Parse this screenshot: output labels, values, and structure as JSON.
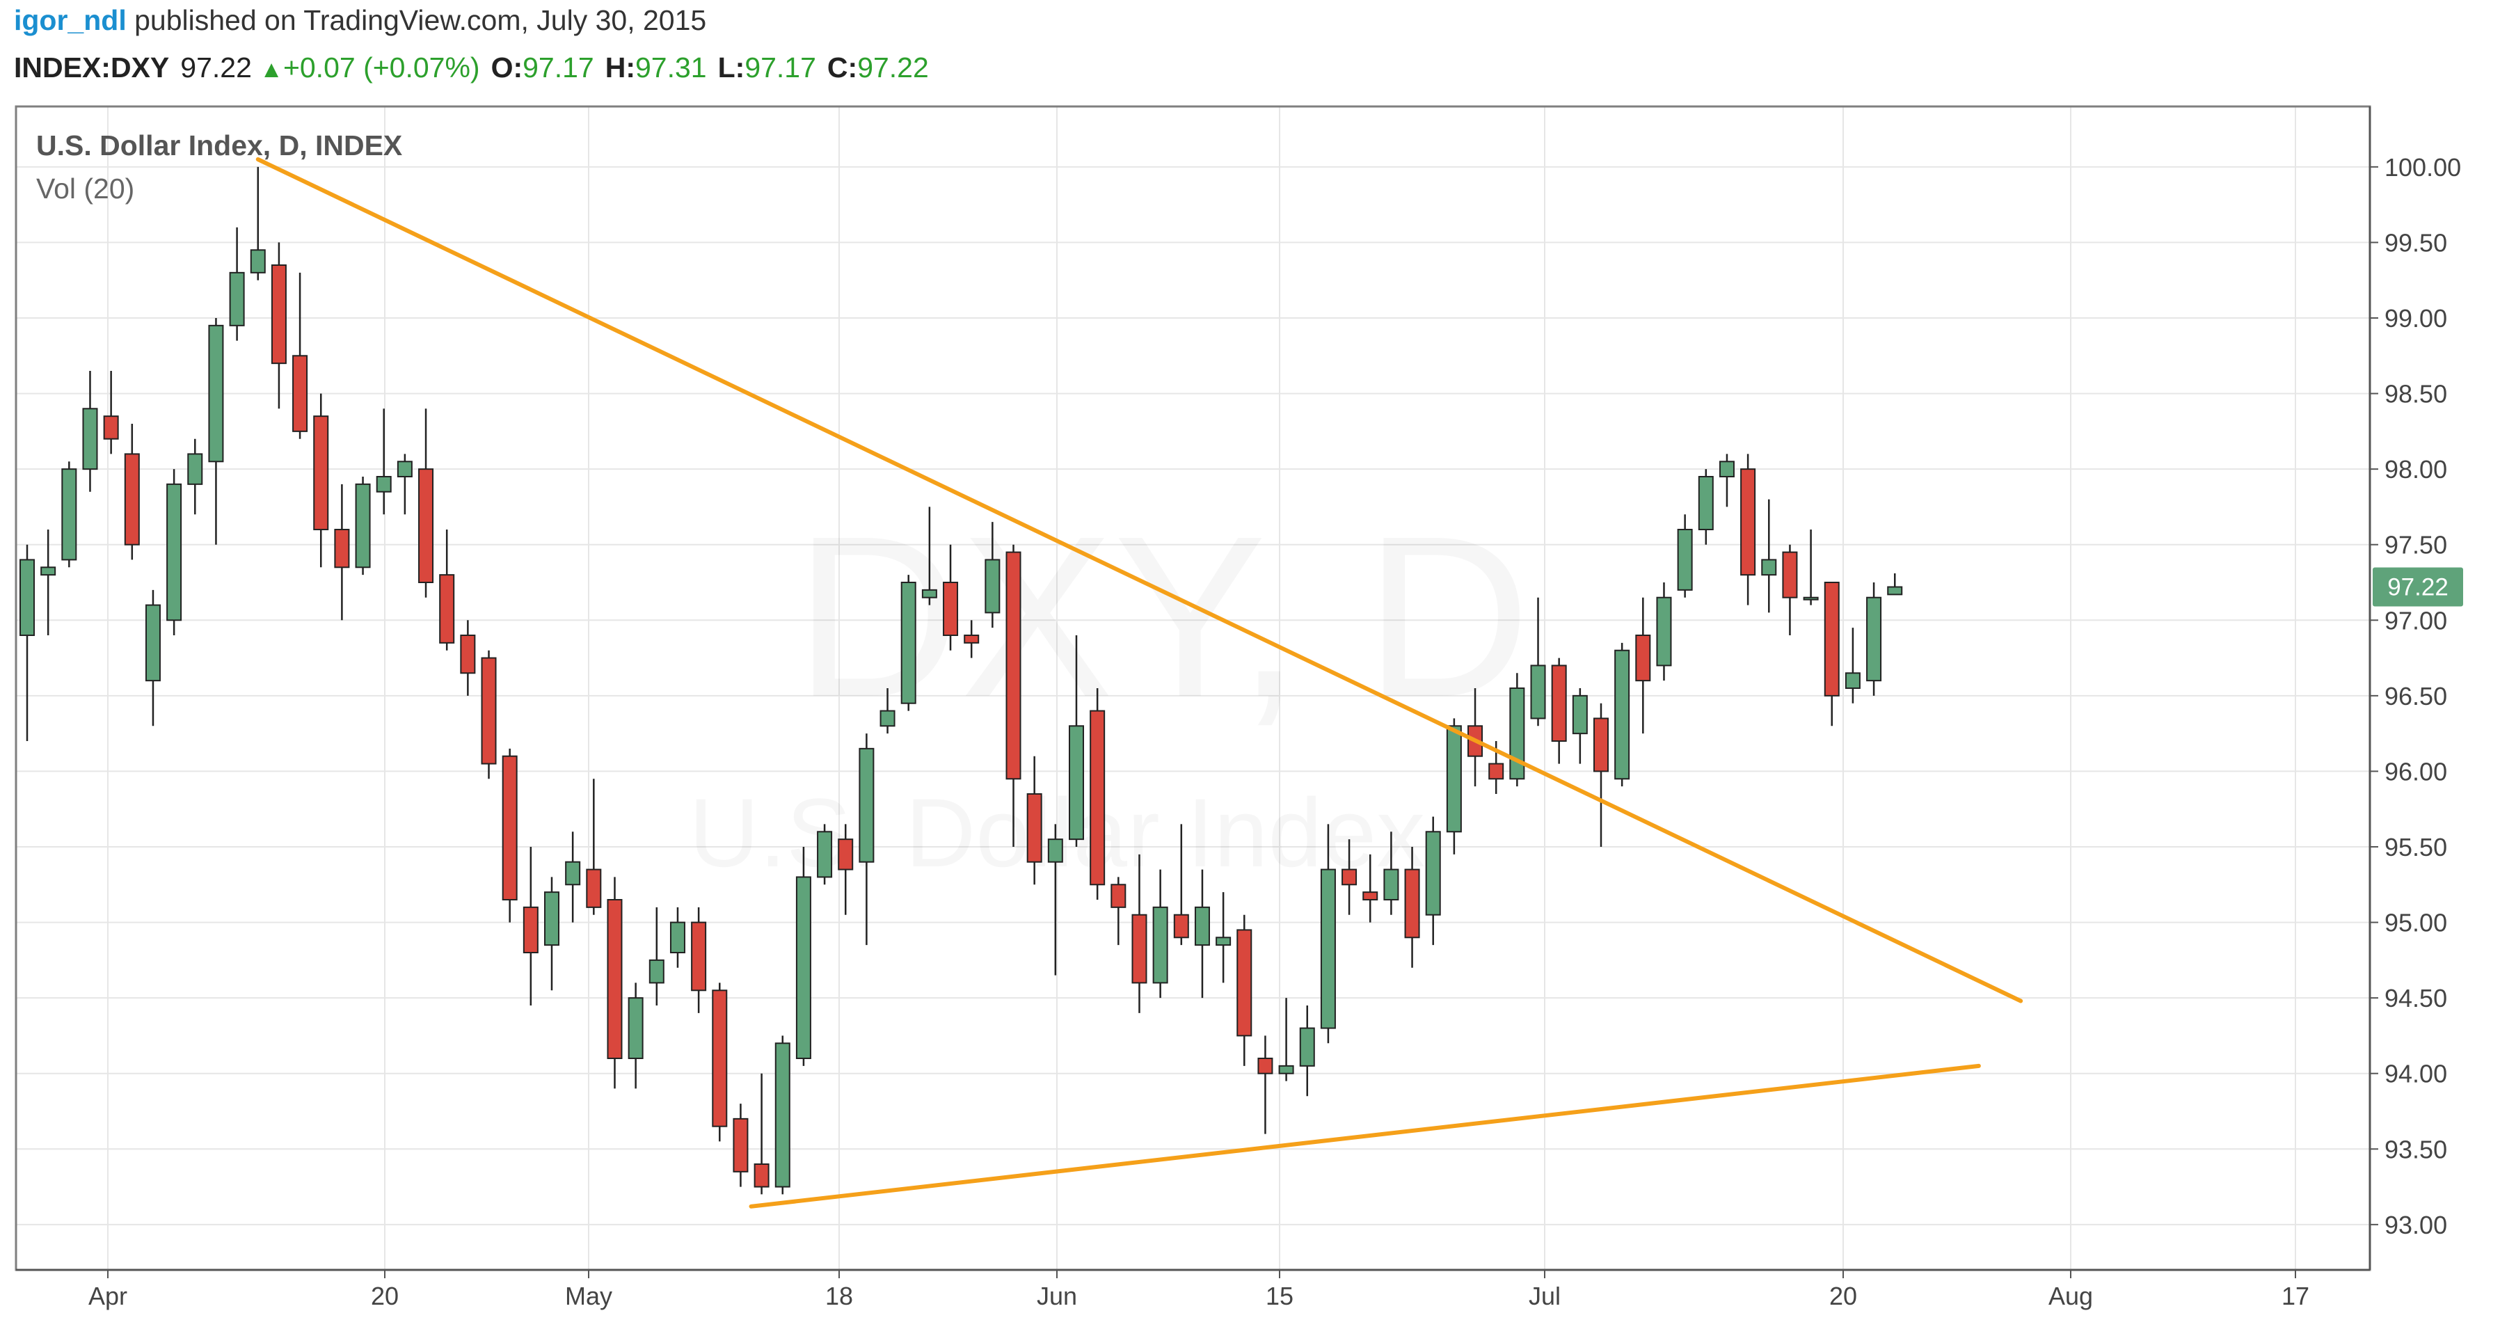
{
  "header": {
    "user": "igor_ndl",
    "published": "published on TradingView.com, July 30, 2015",
    "symbol": "INDEX:DXY",
    "last": "97.22",
    "change": "+0.07 (+0.07%)",
    "o_label": "O:",
    "o_value": "97.17",
    "h_label": "H:",
    "h_value": "97.31",
    "l_label": "L:",
    "l_value": "97.17",
    "c_label": "C:",
    "c_value": "97.22"
  },
  "pane": {
    "title": "U.S. Dollar Index, D, INDEX",
    "indicator": "Vol (20)",
    "watermark_big": "DXY, D",
    "watermark_small": "U.S. Dollar Index"
  },
  "price_label": "97.22",
  "colors": {
    "up": "#5fa37a",
    "down": "#d9473d",
    "trendline": "#f5a019",
    "grid": "#e6e6e6",
    "header_values": "#2ca02c",
    "user": "#1b8fd0"
  },
  "chart_data": {
    "type": "candlestick",
    "title": "U.S. Dollar Index, D, INDEX",
    "y_range": [
      92.7,
      100.4
    ],
    "y_ticks": [
      "100.00",
      "99.50",
      "99.00",
      "98.50",
      "98.00",
      "97.50",
      "97.00",
      "96.50",
      "96.00",
      "95.50",
      "95.00",
      "94.50",
      "94.00",
      "93.50",
      "93.00"
    ],
    "x_ticks": [
      "Apr",
      "20",
      "May",
      "18",
      "Jun",
      "15",
      "Jul",
      "20",
      "Aug",
      "17"
    ],
    "candles": [
      {
        "o": 96.9,
        "h": 97.5,
        "l": 96.2,
        "c": 97.4
      },
      {
        "o": 97.3,
        "h": 97.6,
        "l": 96.9,
        "c": 97.35
      },
      {
        "o": 97.4,
        "h": 98.05,
        "l": 97.35,
        "c": 98.0
      },
      {
        "o": 98.0,
        "h": 98.65,
        "l": 97.85,
        "c": 98.4
      },
      {
        "o": 98.35,
        "h": 98.65,
        "l": 98.1,
        "c": 98.2
      },
      {
        "o": 98.1,
        "h": 98.3,
        "l": 97.4,
        "c": 97.5
      },
      {
        "o": 96.6,
        "h": 97.2,
        "l": 96.3,
        "c": 97.1
      },
      {
        "o": 97.0,
        "h": 98.0,
        "l": 96.9,
        "c": 97.9
      },
      {
        "o": 97.9,
        "h": 98.2,
        "l": 97.7,
        "c": 98.1
      },
      {
        "o": 98.05,
        "h": 99.0,
        "l": 97.5,
        "c": 98.95
      },
      {
        "o": 98.95,
        "h": 99.6,
        "l": 98.85,
        "c": 99.3
      },
      {
        "o": 99.3,
        "h": 100.0,
        "l": 99.25,
        "c": 99.45
      },
      {
        "o": 99.35,
        "h": 99.5,
        "l": 98.4,
        "c": 98.7
      },
      {
        "o": 98.75,
        "h": 99.3,
        "l": 98.2,
        "c": 98.25
      },
      {
        "o": 98.35,
        "h": 98.5,
        "l": 97.35,
        "c": 97.6
      },
      {
        "o": 97.6,
        "h": 97.9,
        "l": 97.0,
        "c": 97.35
      },
      {
        "o": 97.35,
        "h": 97.95,
        "l": 97.3,
        "c": 97.9
      },
      {
        "o": 97.85,
        "h": 98.4,
        "l": 97.7,
        "c": 97.95
      },
      {
        "o": 97.95,
        "h": 98.1,
        "l": 97.7,
        "c": 98.05
      },
      {
        "o": 98.0,
        "h": 98.4,
        "l": 97.15,
        "c": 97.25
      },
      {
        "o": 97.3,
        "h": 97.6,
        "l": 96.8,
        "c": 96.85
      },
      {
        "o": 96.9,
        "h": 97.0,
        "l": 96.5,
        "c": 96.65
      },
      {
        "o": 96.75,
        "h": 96.8,
        "l": 95.95,
        "c": 96.05
      },
      {
        "o": 96.1,
        "h": 96.15,
        "l": 95.0,
        "c": 95.15
      },
      {
        "o": 95.1,
        "h": 95.5,
        "l": 94.45,
        "c": 94.8
      },
      {
        "o": 94.85,
        "h": 95.3,
        "l": 94.55,
        "c": 95.2
      },
      {
        "o": 95.25,
        "h": 95.6,
        "l": 95.0,
        "c": 95.4
      },
      {
        "o": 95.35,
        "h": 95.95,
        "l": 95.05,
        "c": 95.1
      },
      {
        "o": 95.15,
        "h": 95.3,
        "l": 93.9,
        "c": 94.1
      },
      {
        "o": 94.1,
        "h": 94.6,
        "l": 93.9,
        "c": 94.5
      },
      {
        "o": 94.6,
        "h": 95.1,
        "l": 94.45,
        "c": 94.75
      },
      {
        "o": 94.8,
        "h": 95.1,
        "l": 94.7,
        "c": 95.0
      },
      {
        "o": 95.0,
        "h": 95.1,
        "l": 94.4,
        "c": 94.55
      },
      {
        "o": 94.55,
        "h": 94.6,
        "l": 93.55,
        "c": 93.65
      },
      {
        "o": 93.7,
        "h": 93.8,
        "l": 93.25,
        "c": 93.35
      },
      {
        "o": 93.4,
        "h": 94.0,
        "l": 93.2,
        "c": 93.25
      },
      {
        "o": 93.25,
        "h": 94.25,
        "l": 93.2,
        "c": 94.2
      },
      {
        "o": 94.1,
        "h": 95.5,
        "l": 94.05,
        "c": 95.3
      },
      {
        "o": 95.3,
        "h": 95.65,
        "l": 95.25,
        "c": 95.6
      },
      {
        "o": 95.55,
        "h": 95.65,
        "l": 95.05,
        "c": 95.35
      },
      {
        "o": 95.4,
        "h": 96.25,
        "l": 94.85,
        "c": 96.15
      },
      {
        "o": 96.3,
        "h": 96.55,
        "l": 96.25,
        "c": 96.4
      },
      {
        "o": 96.45,
        "h": 97.3,
        "l": 96.4,
        "c": 97.25
      },
      {
        "o": 97.15,
        "h": 97.75,
        "l": 97.1,
        "c": 97.2
      },
      {
        "o": 97.25,
        "h": 97.5,
        "l": 96.8,
        "c": 96.9
      },
      {
        "o": 96.9,
        "h": 97.0,
        "l": 96.75,
        "c": 96.85
      },
      {
        "o": 97.05,
        "h": 97.65,
        "l": 96.95,
        "c": 97.4
      },
      {
        "o": 97.45,
        "h": 97.5,
        "l": 95.5,
        "c": 95.95
      },
      {
        "o": 95.85,
        "h": 96.1,
        "l": 95.25,
        "c": 95.4
      },
      {
        "o": 95.4,
        "h": 95.65,
        "l": 94.65,
        "c": 95.55
      },
      {
        "o": 95.55,
        "h": 96.9,
        "l": 95.5,
        "c": 96.3
      },
      {
        "o": 96.4,
        "h": 96.55,
        "l": 95.15,
        "c": 95.25
      },
      {
        "o": 95.25,
        "h": 95.3,
        "l": 94.85,
        "c": 95.1
      },
      {
        "o": 95.05,
        "h": 95.45,
        "l": 94.4,
        "c": 94.6
      },
      {
        "o": 94.6,
        "h": 95.35,
        "l": 94.5,
        "c": 95.1
      },
      {
        "o": 95.05,
        "h": 95.65,
        "l": 94.85,
        "c": 94.9
      },
      {
        "o": 94.85,
        "h": 95.35,
        "l": 94.5,
        "c": 95.1
      },
      {
        "o": 94.85,
        "h": 95.2,
        "l": 94.6,
        "c": 94.9
      },
      {
        "o": 94.95,
        "h": 95.05,
        "l": 94.05,
        "c": 94.25
      },
      {
        "o": 94.1,
        "h": 94.25,
        "l": 93.6,
        "c": 94.0
      },
      {
        "o": 94.0,
        "h": 94.5,
        "l": 93.95,
        "c": 94.05
      },
      {
        "o": 94.05,
        "h": 94.45,
        "l": 93.85,
        "c": 94.3
      },
      {
        "o": 94.3,
        "h": 95.65,
        "l": 94.2,
        "c": 95.35
      },
      {
        "o": 95.35,
        "h": 95.55,
        "l": 95.05,
        "c": 95.25
      },
      {
        "o": 95.2,
        "h": 95.45,
        "l": 95.0,
        "c": 95.15
      },
      {
        "o": 95.15,
        "h": 95.6,
        "l": 95.05,
        "c": 95.35
      },
      {
        "o": 95.35,
        "h": 95.5,
        "l": 94.7,
        "c": 94.9
      },
      {
        "o": 95.05,
        "h": 95.7,
        "l": 94.85,
        "c": 95.6
      },
      {
        "o": 95.6,
        "h": 96.35,
        "l": 95.45,
        "c": 96.3
      },
      {
        "o": 96.3,
        "h": 96.55,
        "l": 95.9,
        "c": 96.1
      },
      {
        "o": 96.05,
        "h": 96.2,
        "l": 95.85,
        "c": 95.95
      },
      {
        "o": 95.95,
        "h": 96.65,
        "l": 95.9,
        "c": 96.55
      },
      {
        "o": 96.35,
        "h": 97.15,
        "l": 96.3,
        "c": 96.7
      },
      {
        "o": 96.7,
        "h": 96.75,
        "l": 96.05,
        "c": 96.2
      },
      {
        "o": 96.25,
        "h": 96.55,
        "l": 96.05,
        "c": 96.5
      },
      {
        "o": 96.35,
        "h": 96.45,
        "l": 95.5,
        "c": 96.0
      },
      {
        "o": 95.95,
        "h": 96.85,
        "l": 95.9,
        "c": 96.8
      },
      {
        "o": 96.9,
        "h": 97.15,
        "l": 96.25,
        "c": 96.6
      },
      {
        "o": 96.7,
        "h": 97.25,
        "l": 96.6,
        "c": 97.15
      },
      {
        "o": 97.2,
        "h": 97.7,
        "l": 97.15,
        "c": 97.6
      },
      {
        "o": 97.6,
        "h": 98.0,
        "l": 97.5,
        "c": 97.95
      },
      {
        "o": 97.95,
        "h": 98.1,
        "l": 97.75,
        "c": 98.05
      },
      {
        "o": 98.0,
        "h": 98.1,
        "l": 97.1,
        "c": 97.3
      },
      {
        "o": 97.3,
        "h": 97.8,
        "l": 97.05,
        "c": 97.4
      },
      {
        "o": 97.45,
        "h": 97.5,
        "l": 96.9,
        "c": 97.15
      },
      {
        "o": 97.15,
        "h": 97.6,
        "l": 97.1,
        "c": 97.15
      },
      {
        "o": 97.25,
        "h": 97.25,
        "l": 96.3,
        "c": 96.5
      },
      {
        "o": 96.55,
        "h": 96.95,
        "l": 96.45,
        "c": 96.65
      },
      {
        "o": 96.6,
        "h": 97.25,
        "l": 96.5,
        "c": 97.15
      },
      {
        "o": 97.17,
        "h": 97.31,
        "l": 97.17,
        "c": 97.22
      }
    ],
    "trendlines": [
      {
        "from": {
          "x_index": 11,
          "y": 100.05
        },
        "to": {
          "x_index": 95.0,
          "y": 94.48
        }
      },
      {
        "from": {
          "x_index": 34.5,
          "y": 93.12
        },
        "to": {
          "x_index": 93.0,
          "y": 94.05
        }
      }
    ]
  }
}
